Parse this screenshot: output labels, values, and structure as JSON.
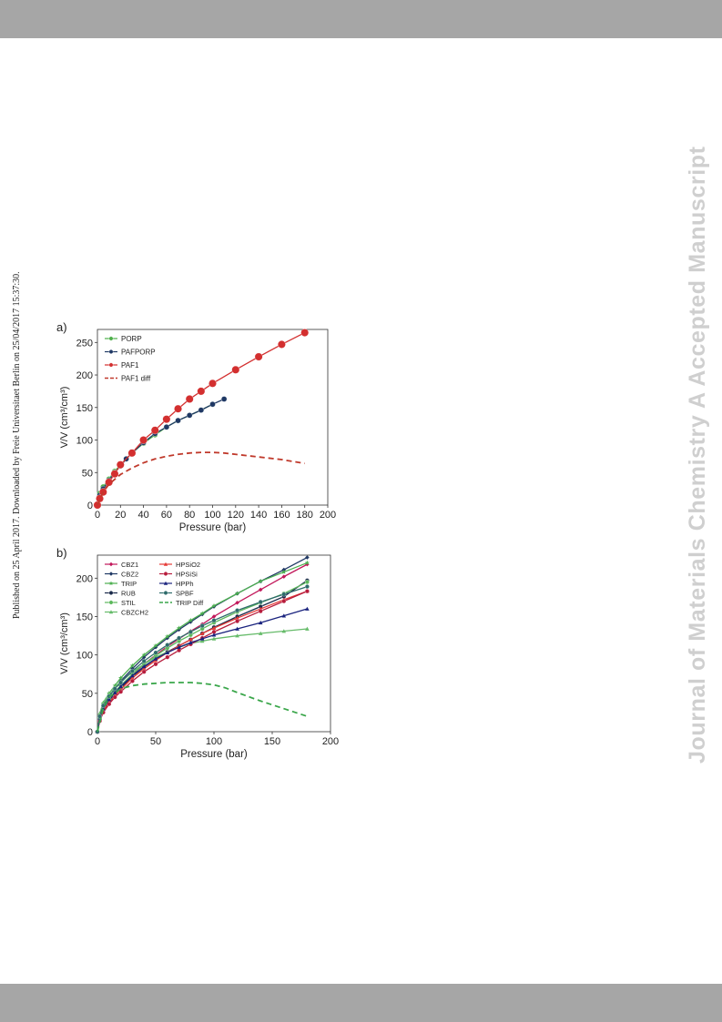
{
  "page": {
    "side_note": "Published on 25 April 2017. Downloaded by Freie Universitaet Berlin on 25/04/2017 15:37:30.",
    "watermark": "Journal of Materials Chemistry A Accepted Manuscript"
  },
  "chart_data": [
    {
      "type": "line",
      "panel_label": "a)",
      "xlabel": "Pressure (bar)",
      "ylabel": "V/V (cm³/cm³)",
      "xlim": [
        0,
        200
      ],
      "ylim": [
        0,
        270
      ],
      "xticks": [
        0,
        20,
        40,
        60,
        80,
        100,
        120,
        140,
        160,
        180,
        200
      ],
      "yticks": [
        0,
        50,
        100,
        150,
        200,
        250
      ],
      "legend_position": "top-left",
      "series": [
        {
          "name": "PORP",
          "color": "#4daf4a",
          "marker": "circle",
          "markersize": 3.0,
          "x": [
            0,
            2,
            5,
            10,
            15,
            20,
            30,
            40,
            50,
            60,
            70,
            80,
            90,
            100
          ],
          "y": [
            0,
            18,
            28,
            40,
            52,
            62,
            80,
            95,
            108,
            120,
            130,
            138,
            146,
            155
          ]
        },
        {
          "name": "PAFPORP",
          "color": "#1f3864",
          "marker": "circle",
          "markersize": 3.0,
          "x": [
            0,
            2,
            5,
            10,
            15,
            20,
            25,
            30,
            40,
            50,
            60,
            70,
            80,
            90,
            100,
            110
          ],
          "y": [
            0,
            15,
            25,
            38,
            50,
            60,
            71,
            80,
            96,
            110,
            120,
            130,
            138,
            146,
            155,
            163
          ]
        },
        {
          "name": "PAF1",
          "color": "#d32f2f",
          "marker": "circle",
          "markersize": 4.2,
          "x": [
            0,
            2,
            5,
            10,
            15,
            20,
            30,
            40,
            50,
            60,
            70,
            80,
            90,
            100,
            120,
            140,
            160,
            180
          ],
          "y": [
            0,
            10,
            20,
            35,
            48,
            62,
            80,
            100,
            115,
            132,
            148,
            163,
            175,
            187,
            208,
            228,
            247,
            265
          ]
        },
        {
          "name": "PAF1 diff",
          "color": "#c0392b",
          "dashed": true,
          "x": [
            0,
            5,
            10,
            20,
            30,
            40,
            50,
            60,
            70,
            80,
            90,
            100,
            110,
            120,
            140,
            160,
            180
          ],
          "y": [
            0,
            20,
            32,
            47,
            57,
            65,
            71,
            75,
            78,
            80,
            81,
            81,
            80,
            78,
            74,
            70,
            64
          ]
        }
      ]
    },
    {
      "type": "line",
      "panel_label": "b)",
      "xlabel": "Pressure (bar)",
      "ylabel": "V/V (cm³/cm³)",
      "xlim": [
        0,
        200
      ],
      "ylim": [
        0,
        230
      ],
      "xticks": [
        0,
        50,
        100,
        150,
        200
      ],
      "yticks": [
        0,
        50,
        100,
        150,
        200
      ],
      "legend_position": "top-left",
      "series": [
        {
          "name": "CBZ1",
          "color": "#c2185b",
          "marker": "diamond",
          "x": [
            0,
            2,
            5,
            10,
            15,
            20,
            30,
            40,
            50,
            60,
            70,
            80,
            90,
            100,
            120,
            140,
            160,
            180
          ],
          "y": [
            0,
            15,
            28,
            40,
            50,
            58,
            74,
            88,
            100,
            111,
            121,
            131,
            140,
            150,
            168,
            185,
            202,
            218
          ]
        },
        {
          "name": "CBZ2",
          "color": "#1f3864",
          "marker": "diamond",
          "x": [
            0,
            2,
            5,
            10,
            15,
            20,
            30,
            40,
            50,
            60,
            70,
            80,
            90,
            100,
            120,
            140,
            160,
            180
          ],
          "y": [
            0,
            20,
            33,
            46,
            56,
            66,
            82,
            97,
            110,
            122,
            133,
            143,
            153,
            163,
            180,
            196,
            211,
            227
          ]
        },
        {
          "name": "TRIP",
          "color": "#4caf50",
          "marker": "star",
          "x": [
            0,
            2,
            5,
            10,
            15,
            20,
            30,
            40,
            50,
            60,
            70,
            80,
            90,
            100,
            120,
            140,
            160,
            180
          ],
          "y": [
            0,
            22,
            37,
            50,
            60,
            70,
            86,
            100,
            112,
            124,
            135,
            145,
            154,
            164,
            180,
            196,
            208,
            220
          ]
        },
        {
          "name": "RUB",
          "color": "#1a2a4a",
          "marker": "circle",
          "x": [
            0,
            2,
            5,
            10,
            15,
            20,
            30,
            40,
            50,
            60,
            70,
            80,
            90,
            100,
            120,
            140,
            160,
            180
          ],
          "y": [
            0,
            16,
            28,
            40,
            49,
            57,
            72,
            84,
            95,
            104,
            112,
            120,
            128,
            136,
            150,
            163,
            176,
            197
          ]
        },
        {
          "name": "STIL",
          "color": "#5cb85c",
          "marker": "circle",
          "x": [
            0,
            2,
            5,
            10,
            15,
            20,
            30,
            40,
            50,
            60,
            70,
            80,
            90,
            100,
            120,
            140,
            160,
            180
          ],
          "y": [
            0,
            18,
            30,
            43,
            52,
            60,
            75,
            88,
            99,
            109,
            118,
            126,
            134,
            142,
            156,
            168,
            180,
            195
          ]
        },
        {
          "name": "CBZCH2",
          "color": "#66bb6a",
          "marker": "triangle",
          "x": [
            0,
            2,
            5,
            10,
            15,
            20,
            30,
            40,
            50,
            60,
            70,
            80,
            90,
            100,
            120,
            140,
            160,
            180
          ],
          "y": [
            0,
            24,
            38,
            50,
            58,
            65,
            78,
            88,
            97,
            104,
            110,
            115,
            118,
            121,
            125,
            128,
            131,
            134
          ]
        },
        {
          "name": "HPSiO2",
          "color": "#e53935",
          "marker": "triangle",
          "x": [
            0,
            2,
            5,
            10,
            15,
            20,
            30,
            40,
            50,
            60,
            70,
            80,
            90,
            100,
            120,
            140,
            160,
            180
          ],
          "y": [
            0,
            15,
            27,
            38,
            47,
            55,
            70,
            82,
            93,
            103,
            112,
            120,
            128,
            135,
            148,
            160,
            172,
            183
          ]
        },
        {
          "name": "HPSiSi",
          "color": "#b71c3c",
          "marker": "circle",
          "x": [
            0,
            2,
            5,
            10,
            15,
            20,
            30,
            40,
            50,
            60,
            70,
            80,
            90,
            100,
            120,
            140,
            160,
            180
          ],
          "y": [
            0,
            14,
            25,
            36,
            45,
            52,
            66,
            78,
            88,
            97,
            106,
            114,
            122,
            130,
            144,
            157,
            170,
            183
          ]
        },
        {
          "name": "HPPh",
          "color": "#1a237e",
          "marker": "triangle",
          "x": [
            0,
            2,
            5,
            10,
            15,
            20,
            30,
            40,
            50,
            60,
            70,
            80,
            90,
            100,
            120,
            140,
            160,
            180
          ],
          "y": [
            0,
            18,
            30,
            42,
            51,
            59,
            73,
            85,
            95,
            103,
            110,
            116,
            121,
            126,
            134,
            142,
            151,
            160
          ]
        },
        {
          "name": "SPBF",
          "color": "#2e6b6b",
          "marker": "circle",
          "x": [
            0,
            2,
            5,
            10,
            15,
            20,
            30,
            40,
            50,
            60,
            70,
            80,
            90,
            100,
            120,
            140,
            160,
            180
          ],
          "y": [
            0,
            20,
            34,
            46,
            56,
            64,
            79,
            92,
            103,
            113,
            122,
            130,
            138,
            145,
            158,
            169,
            179,
            189
          ]
        },
        {
          "name": "TRIP Diff",
          "color": "#3aa64a",
          "dashed": true,
          "x": [
            0,
            5,
            10,
            20,
            30,
            40,
            50,
            60,
            70,
            80,
            90,
            100,
            110,
            120,
            140,
            160,
            180
          ],
          "y": [
            0,
            30,
            45,
            56,
            60,
            62,
            63,
            64,
            64,
            64,
            63,
            61,
            57,
            51,
            40,
            30,
            20
          ]
        }
      ]
    }
  ]
}
